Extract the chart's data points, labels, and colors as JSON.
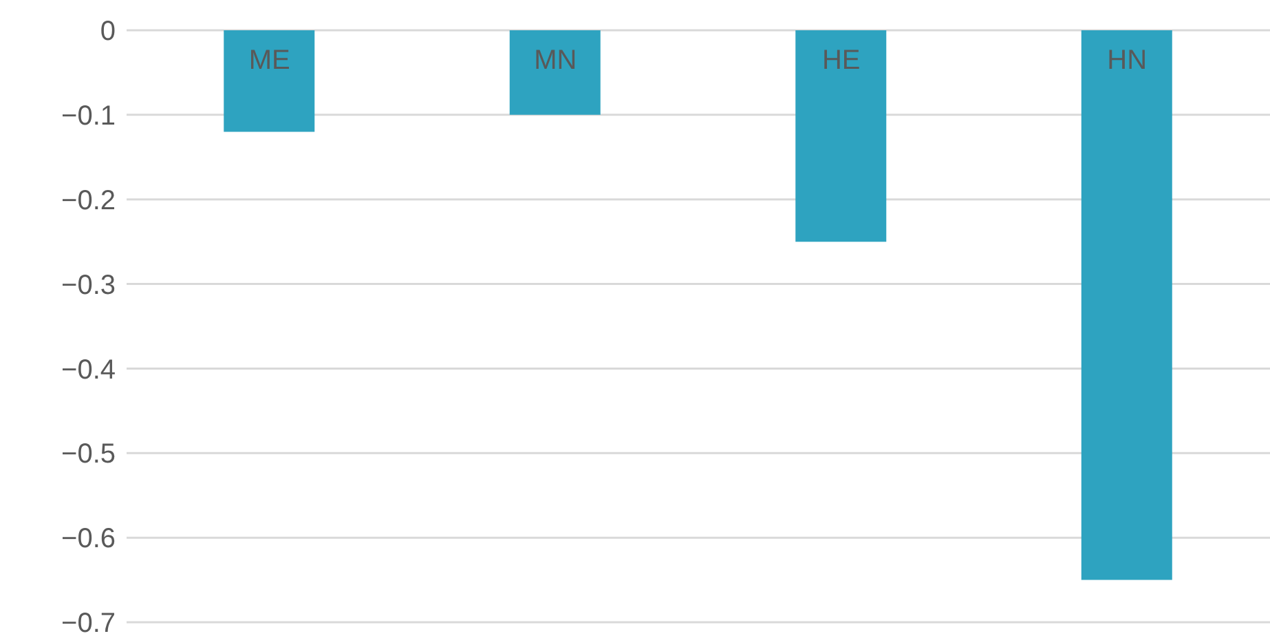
{
  "chart_data": {
    "type": "bar",
    "categories": [
      "ME",
      "MN",
      "HE",
      "HN"
    ],
    "values": [
      -0.12,
      -0.1,
      -0.25,
      -0.65
    ],
    "color": "#2ea3c0",
    "ylim": [
      -0.7,
      0
    ],
    "yticks": [
      {
        "value": 0,
        "label": "0"
      },
      {
        "value": -0.1,
        "label": "−0.1"
      },
      {
        "value": -0.2,
        "label": "−0.2"
      },
      {
        "value": -0.3,
        "label": "−0.3"
      },
      {
        "value": -0.4,
        "label": "−0.4"
      },
      {
        "value": -0.5,
        "label": "−0.5"
      },
      {
        "value": -0.6,
        "label": "−0.6"
      },
      {
        "value": -0.7,
        "label": "−0.7"
      }
    ],
    "grid": "y"
  }
}
